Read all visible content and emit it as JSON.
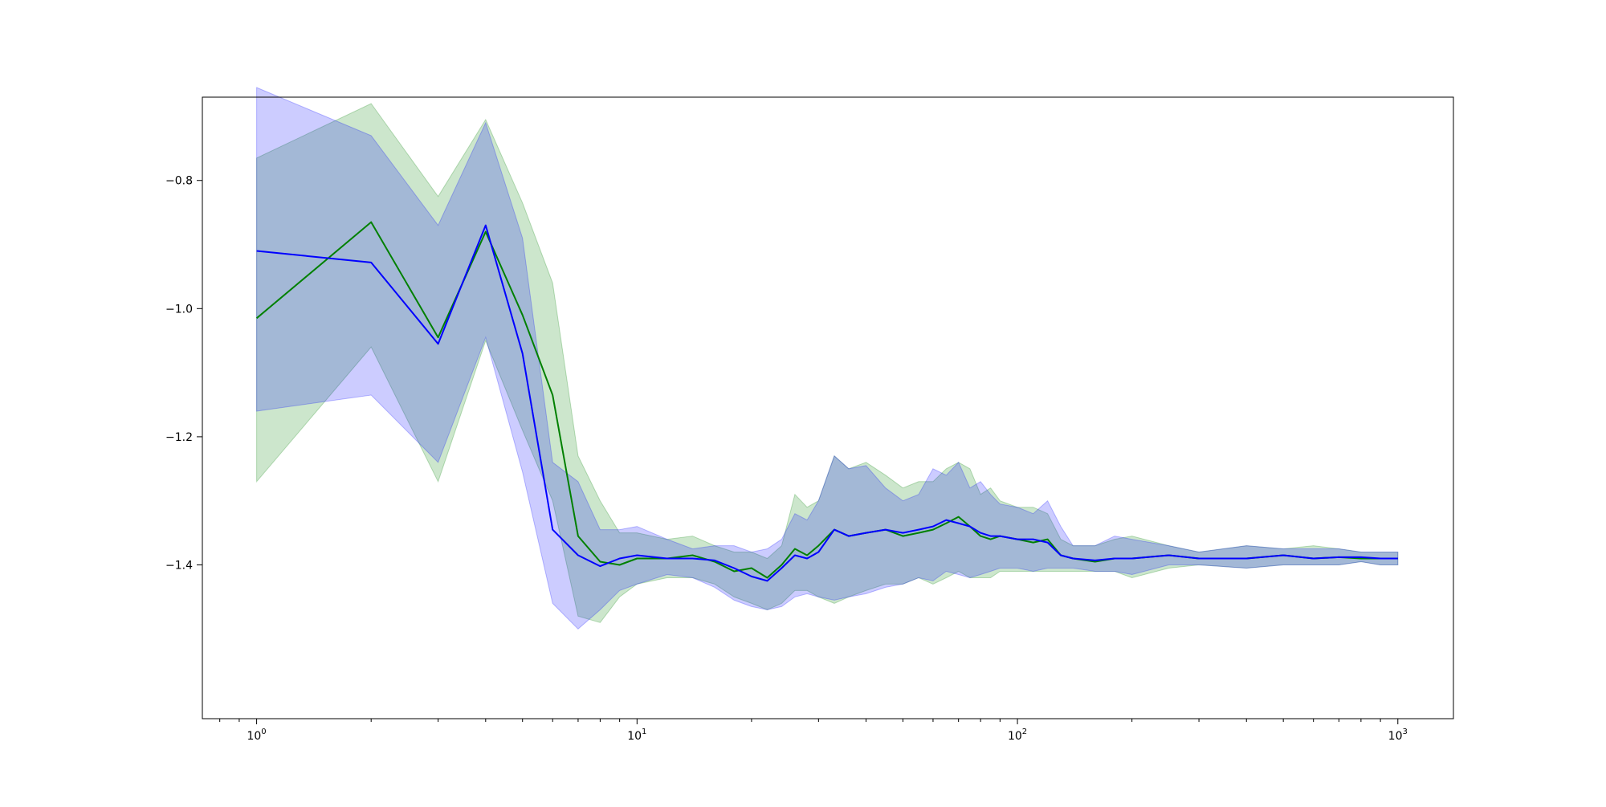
{
  "chart_data": {
    "type": "line",
    "title": "",
    "xlabel": "",
    "ylabel": "",
    "xscale": "log",
    "xlim": [
      0.72,
      1400
    ],
    "ylim": [
      -1.64,
      -0.67
    ],
    "grid": false,
    "legend": "none",
    "x_major_ticks": [
      {
        "value": 1,
        "base": "10",
        "exp": "0"
      },
      {
        "value": 10,
        "base": "10",
        "exp": "1"
      },
      {
        "value": 100,
        "base": "10",
        "exp": "2"
      },
      {
        "value": 1000,
        "base": "10",
        "exp": "3"
      }
    ],
    "y_ticks": [
      {
        "value": -0.8,
        "label": "−0.8"
      },
      {
        "value": -1.0,
        "label": "−1.0"
      },
      {
        "value": -1.2,
        "label": "−1.2"
      },
      {
        "value": -1.4,
        "label": "−1.4"
      }
    ],
    "colors": {
      "green_line": "#008000",
      "green_band": "#008000",
      "blue_line": "#0000ff",
      "blue_band": "#0000ff",
      "axes": "#000000"
    },
    "series": [
      {
        "color": "green",
        "x": [
          1,
          2,
          3,
          4,
          5,
          6,
          7,
          8,
          9,
          10,
          12,
          14,
          16,
          18,
          20,
          22,
          24,
          26,
          28,
          30,
          33,
          36,
          40,
          45,
          50,
          55,
          60,
          65,
          70,
          75,
          80,
          85,
          90,
          100,
          110,
          120,
          130,
          140,
          160,
          180,
          200,
          250,
          300,
          400,
          500,
          600,
          700,
          800,
          900,
          1000
        ],
        "y": [
          -1.015,
          -0.865,
          -1.045,
          -0.88,
          -1.01,
          -1.135,
          -1.355,
          -1.395,
          -1.4,
          -1.39,
          -1.39,
          -1.385,
          -1.395,
          -1.41,
          -1.405,
          -1.42,
          -1.4,
          -1.375,
          -1.385,
          -1.37,
          -1.345,
          -1.355,
          -1.35,
          -1.345,
          -1.355,
          -1.35,
          -1.345,
          -1.335,
          -1.325,
          -1.34,
          -1.355,
          -1.36,
          -1.355,
          -1.36,
          -1.365,
          -1.36,
          -1.385,
          -1.39,
          -1.395,
          -1.39,
          -1.39,
          -1.385,
          -1.39,
          -1.39,
          -1.385,
          -1.39,
          -1.388,
          -1.39,
          -1.39,
          -1.39
        ],
        "upper": [
          -0.765,
          -0.68,
          -0.825,
          -0.705,
          -0.835,
          -0.96,
          -1.23,
          -1.3,
          -1.35,
          -1.35,
          -1.36,
          -1.355,
          -1.37,
          -1.38,
          -1.38,
          -1.39,
          -1.37,
          -1.29,
          -1.31,
          -1.3,
          -1.23,
          -1.25,
          -1.24,
          -1.26,
          -1.28,
          -1.27,
          -1.27,
          -1.25,
          -1.24,
          -1.25,
          -1.29,
          -1.28,
          -1.3,
          -1.31,
          -1.31,
          -1.32,
          -1.36,
          -1.37,
          -1.37,
          -1.36,
          -1.355,
          -1.37,
          -1.38,
          -1.37,
          -1.375,
          -1.37,
          -1.375,
          -1.38,
          -1.38,
          -1.38
        ],
        "lower": [
          -1.27,
          -1.06,
          -1.27,
          -1.05,
          -1.19,
          -1.3,
          -1.48,
          -1.49,
          -1.45,
          -1.43,
          -1.42,
          -1.42,
          -1.43,
          -1.45,
          -1.46,
          -1.47,
          -1.46,
          -1.44,
          -1.44,
          -1.45,
          -1.46,
          -1.45,
          -1.44,
          -1.43,
          -1.43,
          -1.42,
          -1.43,
          -1.42,
          -1.41,
          -1.42,
          -1.42,
          -1.42,
          -1.41,
          -1.41,
          -1.41,
          -1.41,
          -1.41,
          -1.41,
          -1.41,
          -1.41,
          -1.42,
          -1.405,
          -1.4,
          -1.405,
          -1.4,
          -1.4,
          -1.4,
          -1.395,
          -1.4,
          -1.4
        ]
      },
      {
        "color": "blue",
        "x": [
          1,
          2,
          3,
          4,
          5,
          6,
          7,
          8,
          9,
          10,
          12,
          14,
          16,
          18,
          20,
          22,
          24,
          26,
          28,
          30,
          33,
          36,
          40,
          45,
          50,
          55,
          60,
          65,
          70,
          75,
          80,
          85,
          90,
          100,
          110,
          120,
          130,
          140,
          160,
          180,
          200,
          250,
          300,
          400,
          500,
          600,
          700,
          800,
          900,
          1000
        ],
        "y": [
          -0.91,
          -0.928,
          -1.055,
          -0.87,
          -1.07,
          -1.345,
          -1.385,
          -1.402,
          -1.39,
          -1.385,
          -1.39,
          -1.39,
          -1.393,
          -1.405,
          -1.418,
          -1.425,
          -1.405,
          -1.385,
          -1.39,
          -1.38,
          -1.345,
          -1.355,
          -1.35,
          -1.345,
          -1.35,
          -1.345,
          -1.34,
          -1.33,
          -1.335,
          -1.34,
          -1.35,
          -1.355,
          -1.355,
          -1.36,
          -1.36,
          -1.365,
          -1.385,
          -1.39,
          -1.393,
          -1.39,
          -1.39,
          -1.385,
          -1.39,
          -1.39,
          -1.385,
          -1.39,
          -1.388,
          -1.388,
          -1.39,
          -1.39
        ],
        "upper": [
          -0.655,
          -0.73,
          -0.87,
          -0.71,
          -0.89,
          -1.24,
          -1.27,
          -1.345,
          -1.345,
          -1.34,
          -1.36,
          -1.375,
          -1.37,
          -1.37,
          -1.38,
          -1.375,
          -1.36,
          -1.32,
          -1.33,
          -1.3,
          -1.23,
          -1.25,
          -1.245,
          -1.28,
          -1.3,
          -1.29,
          -1.25,
          -1.26,
          -1.24,
          -1.28,
          -1.27,
          -1.29,
          -1.305,
          -1.31,
          -1.32,
          -1.3,
          -1.34,
          -1.37,
          -1.37,
          -1.355,
          -1.36,
          -1.37,
          -1.38,
          -1.37,
          -1.375,
          -1.375,
          -1.375,
          -1.38,
          -1.38,
          -1.38
        ],
        "lower": [
          -1.16,
          -1.135,
          -1.24,
          -1.045,
          -1.255,
          -1.46,
          -1.5,
          -1.47,
          -1.44,
          -1.43,
          -1.415,
          -1.42,
          -1.435,
          -1.455,
          -1.465,
          -1.47,
          -1.465,
          -1.45,
          -1.445,
          -1.45,
          -1.455,
          -1.45,
          -1.445,
          -1.435,
          -1.43,
          -1.42,
          -1.425,
          -1.41,
          -1.415,
          -1.42,
          -1.415,
          -1.41,
          -1.405,
          -1.405,
          -1.41,
          -1.405,
          -1.405,
          -1.405,
          -1.41,
          -1.41,
          -1.415,
          -1.4,
          -1.4,
          -1.405,
          -1.4,
          -1.4,
          -1.4,
          -1.395,
          -1.4,
          -1.4
        ]
      }
    ]
  }
}
